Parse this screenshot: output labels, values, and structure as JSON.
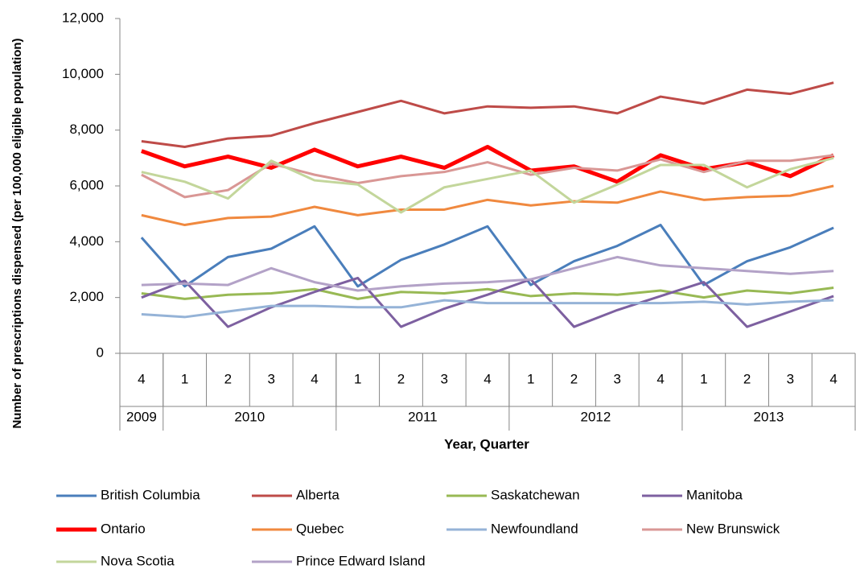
{
  "chart_data": {
    "type": "line",
    "y_label": "Number of prescriptions dispensed (per 100,000 eligible population)",
    "x_label": "Year, Quarter",
    "categories": [
      "4",
      "1",
      "2",
      "3",
      "4",
      "1",
      "2",
      "3",
      "4",
      "1",
      "2",
      "3",
      "4",
      "1",
      "2",
      "3",
      "4"
    ],
    "category_groups": [
      {
        "label": "2009",
        "count": 1
      },
      {
        "label": "2010",
        "count": 4
      },
      {
        "label": "2011",
        "count": 4
      },
      {
        "label": "2012",
        "count": 4
      },
      {
        "label": "2013",
        "count": 4
      }
    ],
    "ylim": [
      0,
      12000
    ],
    "yticks": [
      0,
      {
        "value": 2000,
        "label": "2,000"
      },
      {
        "value": 4000,
        "label": "4,000"
      },
      {
        "value": 6000,
        "label": "6,000"
      },
      {
        "value": 8000,
        "label": "8,000"
      },
      {
        "value": 10000,
        "label": "10,000"
      },
      {
        "value": 12000,
        "label": "12,000"
      }
    ],
    "grid": false,
    "legend_position": "bottom",
    "series": [
      {
        "name": "British Columbia",
        "color": "#4a7ebb",
        "line_width": 3,
        "values": [
          4150,
          2400,
          3450,
          3750,
          4550,
          2400,
          3350,
          3900,
          4550,
          2450,
          3300,
          3850,
          4600,
          2450,
          3300,
          3800,
          4500
        ]
      },
      {
        "name": "Alberta",
        "color": "#be4b48",
        "line_width": 3,
        "values": [
          7600,
          7400,
          7700,
          7800,
          8250,
          8650,
          9050,
          8600,
          8850,
          8800,
          8850,
          8600,
          9200,
          8950,
          9450,
          9300,
          9700
        ]
      },
      {
        "name": "Saskatchewan",
        "color": "#98b954",
        "line_width": 3,
        "values": [
          2150,
          1950,
          2100,
          2150,
          2300,
          1950,
          2200,
          2150,
          2300,
          2050,
          2150,
          2100,
          2250,
          2000,
          2250,
          2150,
          2350
        ]
      },
      {
        "name": "Manitoba",
        "color": "#7d60a0",
        "line_width": 3,
        "values": [
          2000,
          2600,
          950,
          1650,
          2200,
          2700,
          950,
          1600,
          2100,
          2650,
          950,
          1550,
          2050,
          2550,
          950,
          1500,
          2050
        ]
      },
      {
        "name": "Ontario",
        "color": "#ff0000",
        "line_width": 5,
        "values": [
          7250,
          6700,
          7050,
          6650,
          7300,
          6700,
          7050,
          6650,
          7400,
          6550,
          6700,
          6150,
          7100,
          6600,
          6850,
          6350,
          7100
        ]
      },
      {
        "name": "Quebec",
        "color": "#f0893f",
        "line_width": 3,
        "values": [
          4950,
          4600,
          4850,
          4900,
          5250,
          4950,
          5150,
          5150,
          5500,
          5300,
          5450,
          5400,
          5800,
          5500,
          5600,
          5650,
          6000
        ]
      },
      {
        "name": "Newfoundland",
        "color": "#95b3d7",
        "line_width": 3,
        "values": [
          1400,
          1300,
          1500,
          1700,
          1700,
          1650,
          1650,
          1900,
          1800,
          1800,
          1800,
          1800,
          1800,
          1850,
          1750,
          1850,
          1900
        ]
      },
      {
        "name": "New Brunswick",
        "color": "#d99795",
        "line_width": 3,
        "values": [
          6400,
          5600,
          5850,
          6800,
          6400,
          6100,
          6350,
          6500,
          6850,
          6400,
          6650,
          6550,
          6950,
          6500,
          6900,
          6900,
          7100
        ]
      },
      {
        "name": "Nova Scotia",
        "color": "#c3d69b",
        "line_width": 3,
        "values": [
          6500,
          6150,
          5550,
          6900,
          6200,
          6050,
          5050,
          5950,
          6250,
          6550,
          5400,
          6050,
          6750,
          6750,
          5950,
          6600,
          7000
        ]
      },
      {
        "name": "Prince Edward Island",
        "color": "#b3a2c7",
        "line_width": 3,
        "values": [
          2450,
          2500,
          2450,
          3050,
          2550,
          2250,
          2400,
          2500,
          2550,
          2650,
          3050,
          3450,
          3150,
          3050,
          2950,
          2850,
          2950
        ]
      }
    ]
  }
}
